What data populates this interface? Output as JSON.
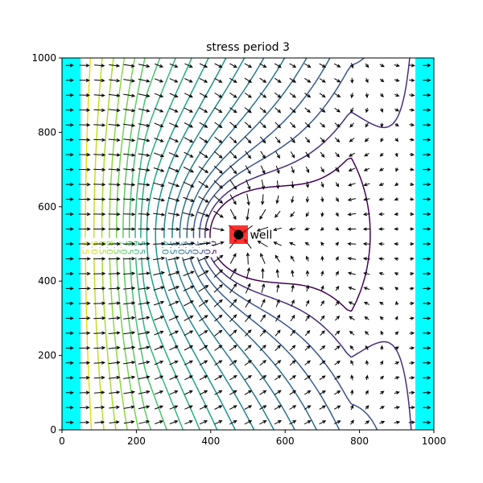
{
  "chart_data": {
    "type": "contour",
    "title": "stress period 3",
    "xlabel": "",
    "ylabel": "",
    "xlim": [
      0,
      1000
    ],
    "ylim": [
      0,
      1000
    ],
    "x_ticks": [
      0,
      200,
      400,
      600,
      800,
      1000
    ],
    "y_ticks": [
      0,
      200,
      400,
      600,
      800,
      1000
    ],
    "grid": false,
    "boundaries": [
      {
        "name": "left constant-head boundary",
        "x0": 0,
        "x1": 50,
        "color": "#00ffff"
      },
      {
        "name": "right constant-head boundary",
        "x0": 950,
        "x1": 1000,
        "color": "#00ffff"
      }
    ],
    "well": {
      "label": "well",
      "x": 475,
      "y": 525,
      "cell_color": "#ff0000",
      "marker_color": "#000000"
    },
    "contour_levels": [
      {
        "level": 0.5,
        "label": "0.5",
        "color": "#440154"
      },
      {
        "level": 1.0,
        "label": "1.0",
        "color": "#472d7b"
      },
      {
        "level": 1.5,
        "label": "1.5",
        "color": "#3b528b"
      },
      {
        "level": 2.0,
        "label": "2.0",
        "color": "#365d8d"
      },
      {
        "level": 2.5,
        "label": "2.5",
        "color": "#31688e"
      },
      {
        "level": 3.0,
        "label": "3.0",
        "color": "#2c728e"
      },
      {
        "level": 3.5,
        "label": "3.5",
        "color": "#287d8e"
      },
      {
        "level": 4.0,
        "label": "4.0",
        "color": "#23888e"
      },
      {
        "level": 4.5,
        "label": "",
        "color": "#1f938c"
      },
      {
        "level": 5.0,
        "label": "",
        "color": "#20a386"
      },
      {
        "level": 5.5,
        "label": "5.5",
        "color": "#26ad81"
      },
      {
        "level": 6.0,
        "label": "6.0",
        "color": "#35b779"
      },
      {
        "level": 6.5,
        "label": "6.5",
        "color": "#4ac16d"
      },
      {
        "level": 7.0,
        "label": "7.0",
        "color": "#5ec962"
      },
      {
        "level": 7.5,
        "label": "7.5",
        "color": "#75d054"
      },
      {
        "level": 8.0,
        "label": "8.0",
        "color": "#8fd744"
      },
      {
        "level": 8.5,
        "label": "8.5",
        "color": "#a8db34"
      },
      {
        "level": 9.0,
        "label": "9.0",
        "color": "#c2df23"
      },
      {
        "level": 9.5,
        "label": "9.5",
        "color": "#dde318"
      }
    ]
  }
}
